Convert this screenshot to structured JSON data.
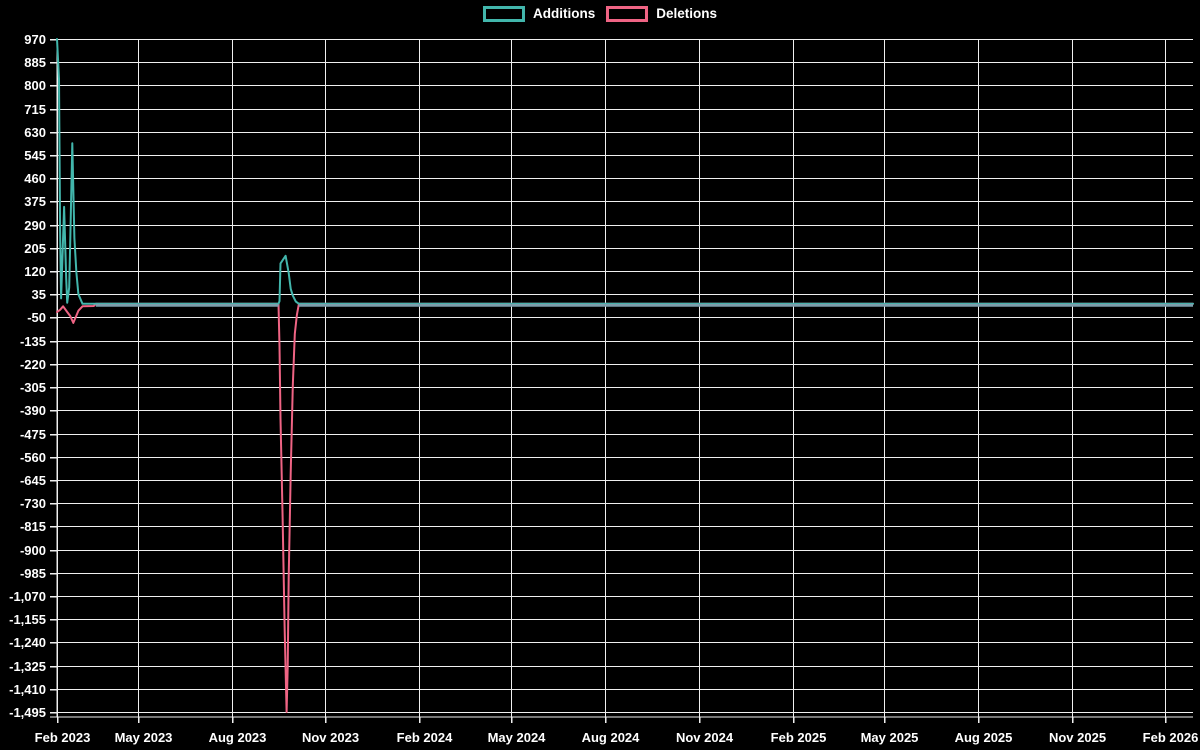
{
  "chart_data": {
    "type": "line",
    "title": "",
    "legend_position": "top",
    "background": "#000000",
    "grid": true,
    "grid_color": "#f0f0f0",
    "axis_color": "#f0f0f0",
    "text_color": "#ffffff",
    "y_axis": {
      "max": 970,
      "min": -1495,
      "step": 85,
      "tick_labels": [
        "970",
        "885",
        "800",
        "715",
        "630",
        "545",
        "460",
        "375",
        "290",
        "205",
        "120",
        "35",
        "-50",
        "-135",
        "-220",
        "-305",
        "-390",
        "-475",
        "-560",
        "-645",
        "-730",
        "-815",
        "-900",
        "-985",
        "-1,070",
        "-1,155",
        "-1,240",
        "-1,325",
        "-1,410",
        "-1,495"
      ]
    },
    "x_axis": {
      "start": "2023-02-11",
      "end": "2026-02-28",
      "ticks": [
        {
          "date": "2023-02-11",
          "label": "Feb 2023"
        },
        {
          "date": "2023-05-01",
          "label": "May 2023"
        },
        {
          "date": "2023-08-01",
          "label": "Aug 2023"
        },
        {
          "date": "2023-11-01",
          "label": "Nov 2023"
        },
        {
          "date": "2024-02-01",
          "label": "Feb 2024"
        },
        {
          "date": "2024-05-01",
          "label": "May 2024"
        },
        {
          "date": "2024-08-01",
          "label": "Aug 2024"
        },
        {
          "date": "2024-11-01",
          "label": "Nov 2024"
        },
        {
          "date": "2025-02-01",
          "label": "Feb 2025"
        },
        {
          "date": "2025-05-01",
          "label": "May 2025"
        },
        {
          "date": "2025-08-01",
          "label": "Aug 2025"
        },
        {
          "date": "2025-11-01",
          "label": "Nov 2025"
        },
        {
          "date": "2026-02-01",
          "label": "Feb 2026"
        }
      ]
    },
    "series": [
      {
        "name": "Additions",
        "color": "#42b6ac",
        "points": [
          [
            "2023-02-11",
            970
          ],
          [
            "2023-02-13",
            824
          ],
          [
            "2023-02-14",
            270
          ],
          [
            "2023-02-15",
            20
          ],
          [
            "2023-02-18",
            355
          ],
          [
            "2023-02-20",
            92
          ],
          [
            "2023-02-21",
            4
          ],
          [
            "2023-02-23",
            60
          ],
          [
            "2023-02-24",
            238
          ],
          [
            "2023-02-26",
            588
          ],
          [
            "2023-02-28",
            240
          ],
          [
            "2023-03-02",
            114
          ],
          [
            "2023-03-04",
            35
          ],
          [
            "2023-03-08",
            0
          ],
          [
            "2023-09-16",
            0
          ],
          [
            "2023-09-17",
            10
          ],
          [
            "2023-09-18",
            148
          ],
          [
            "2023-09-23",
            176
          ],
          [
            "2023-09-26",
            113
          ],
          [
            "2023-09-28",
            55
          ],
          [
            "2023-09-30",
            30
          ],
          [
            "2023-10-03",
            8
          ],
          [
            "2023-10-06",
            0
          ],
          [
            "2026-02-28",
            0
          ]
        ]
      },
      {
        "name": "Deletions",
        "color": "#ef6484",
        "points": [
          [
            "2023-02-11",
            -30
          ],
          [
            "2023-02-14",
            -22
          ],
          [
            "2023-02-17",
            -9
          ],
          [
            "2023-02-21",
            -30
          ],
          [
            "2023-02-24",
            -45
          ],
          [
            "2023-02-27",
            -70
          ],
          [
            "2023-03-04",
            -25
          ],
          [
            "2023-03-08",
            -9
          ],
          [
            "2023-03-19",
            -8
          ],
          [
            "2023-03-21",
            0
          ],
          [
            "2023-09-16",
            0
          ],
          [
            "2023-09-17",
            -155
          ],
          [
            "2023-09-18",
            -420
          ],
          [
            "2023-09-20",
            -780
          ],
          [
            "2023-09-22",
            -1180
          ],
          [
            "2023-09-24",
            -1495
          ],
          [
            "2023-09-25",
            -1330
          ],
          [
            "2023-09-26",
            -1000
          ],
          [
            "2023-09-28",
            -620
          ],
          [
            "2023-09-30",
            -300
          ],
          [
            "2023-10-02",
            -110
          ],
          [
            "2023-10-04",
            -40
          ],
          [
            "2023-10-06",
            0
          ],
          [
            "2026-02-28",
            0
          ]
        ]
      }
    ],
    "zero_overlap": {
      "color": "#7d9dab",
      "spans": [
        [
          "2023-03-21",
          "2023-09-16"
        ],
        [
          "2023-10-06",
          "2026-02-28"
        ]
      ]
    }
  }
}
